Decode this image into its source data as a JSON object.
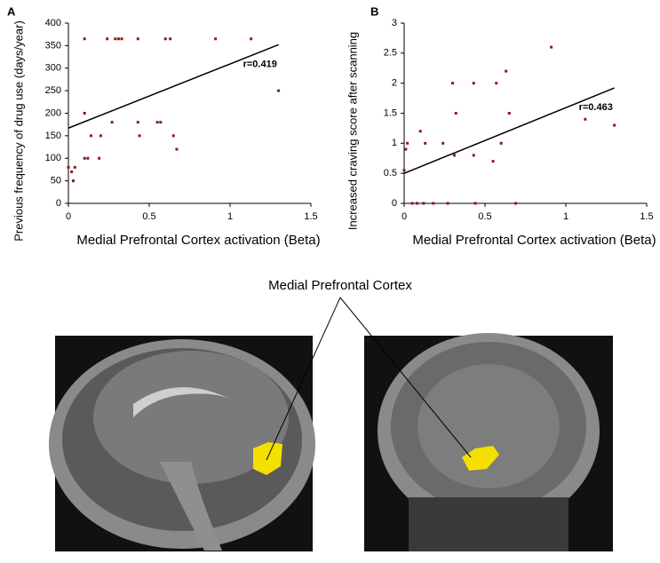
{
  "chart_data": [
    {
      "type": "scatter",
      "panel_label": "A",
      "x_label": "Medial Prefrontal Cortex  activation (Beta)",
      "y_label": "Previous frequency of drug use (days/year)",
      "x": [
        0.0,
        0.02,
        0.03,
        0.04,
        0.1,
        0.1,
        0.1,
        0.12,
        0.14,
        0.19,
        0.2,
        0.24,
        0.27,
        0.29,
        0.31,
        0.33,
        0.43,
        0.43,
        0.44,
        0.55,
        0.57,
        0.6,
        0.63,
        0.65,
        0.67,
        0.91,
        1.13,
        1.3
      ],
      "values": [
        80,
        70,
        50,
        80,
        100,
        200,
        365,
        100,
        150,
        100,
        150,
        365,
        180,
        365,
        365,
        365,
        365,
        180,
        150,
        180,
        180,
        365,
        365,
        150,
        120,
        365,
        365,
        250
      ],
      "color": "#8b1a1a",
      "xlim": [
        0,
        1.5
      ],
      "ylim": [
        0,
        400
      ],
      "xticks": [
        0,
        0.5,
        1,
        1.5
      ],
      "yticks": [
        0,
        50,
        100,
        150,
        200,
        250,
        300,
        350,
        400
      ],
      "fit": {
        "x": [
          0,
          1.3
        ],
        "values": [
          167,
          352
        ]
      },
      "annotation": "r=0.419"
    },
    {
      "type": "scatter",
      "panel_label": "B",
      "x_label": "Medial Prefrontal Cortex  activation (Beta)",
      "y_label": "Increased craving score after scanning",
      "x": [
        0.0,
        0.01,
        0.02,
        0.05,
        0.08,
        0.1,
        0.12,
        0.13,
        0.18,
        0.24,
        0.27,
        0.3,
        0.31,
        0.32,
        0.43,
        0.43,
        0.44,
        0.55,
        0.57,
        0.6,
        0.63,
        0.65,
        0.69,
        0.91,
        1.12,
        1.3
      ],
      "values": [
        0.55,
        0.9,
        1,
        0,
        0,
        1.2,
        0,
        1,
        0,
        1,
        0,
        2,
        0.8,
        1.5,
        2,
        0.8,
        0,
        0.7,
        2,
        1,
        2.2,
        1.5,
        0,
        2.6,
        1.4,
        1.3
      ],
      "color": "#8b1a1a",
      "xlim": [
        0,
        1.5
      ],
      "ylim": [
        0,
        3
      ],
      "xticks": [
        0,
        0.5,
        1,
        1.5
      ],
      "yticks": [
        0,
        0.5,
        1,
        1.5,
        2,
        2.5,
        3
      ],
      "fit": {
        "x": [
          0,
          1.3
        ],
        "values": [
          0.5,
          1.92
        ]
      },
      "annotation": "r=0.463"
    }
  ],
  "figure_label": "Medial Prefrontal Cortex"
}
